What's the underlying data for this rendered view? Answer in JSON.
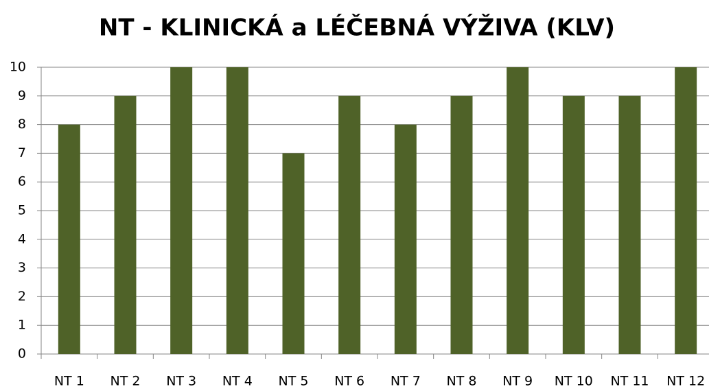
{
  "chart_data": {
    "type": "bar",
    "title": "NT - KLINICKÁ a LÉČEBNÁ VÝŽIVA (KLV)",
    "categories": [
      "NT 1",
      "NT 2",
      "NT 3",
      "NT 4",
      "NT 5",
      "NT 6",
      "NT 7",
      "NT 8",
      "NT 9",
      "NT 10",
      "NT 11",
      "NT 12"
    ],
    "values": [
      8,
      9,
      10,
      10,
      7,
      9,
      8,
      9,
      10,
      9,
      9,
      10
    ],
    "color": "#4f6228",
    "ylim": [
      0,
      10
    ],
    "yticks": [
      0,
      1,
      2,
      3,
      4,
      5,
      6,
      7,
      8,
      9,
      10
    ],
    "grid": true
  }
}
